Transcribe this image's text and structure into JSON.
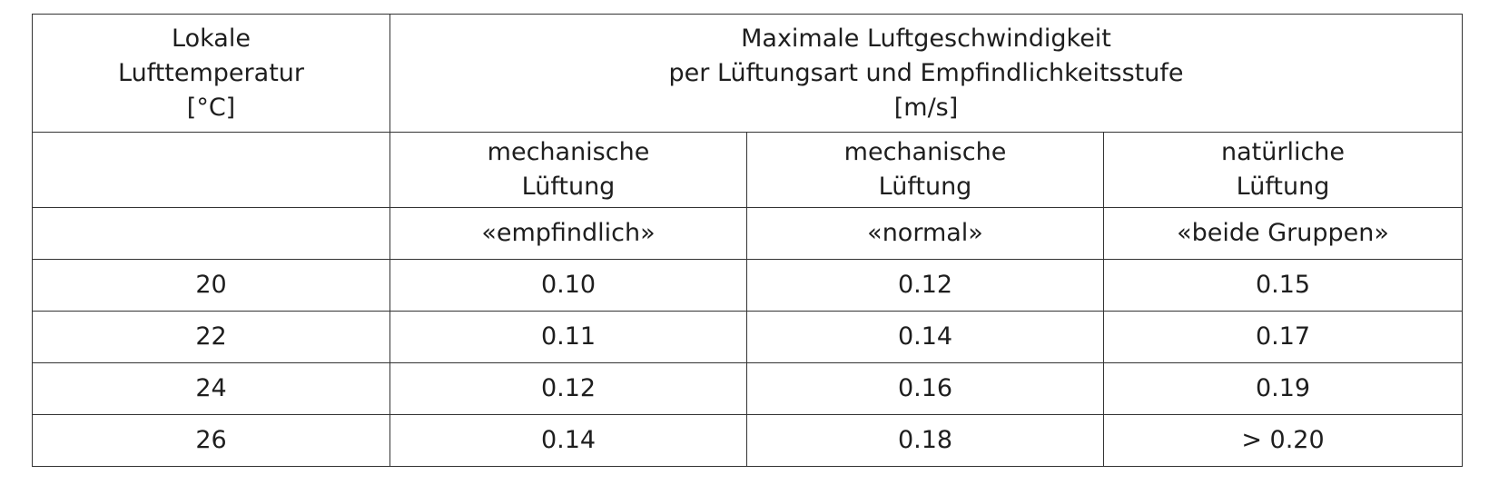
{
  "table": {
    "header": {
      "first": [
        "Lokale",
        "Lufttemperatur",
        "[°C]"
      ],
      "span": [
        "Maximale Luftgeschwindigkeit",
        "per Lüftungsart und Empfindlichkeitsstufe",
        "[m/s]"
      ]
    },
    "ventilation": [
      [
        "mechanische",
        "Lüftung"
      ],
      [
        "mechanische",
        "Lüftung"
      ],
      [
        "natürliche",
        "Lüftung"
      ]
    ],
    "sensitivity": [
      "«empfindlich»",
      "«normal»",
      "«beide Gruppen»"
    ],
    "rows": [
      [
        "20",
        "0.10",
        "0.12",
        "0.15"
      ],
      [
        "22",
        "0.11",
        "0.14",
        "0.17"
      ],
      [
        "24",
        "0.12",
        "0.16",
        "0.19"
      ],
      [
        "26",
        "0.14",
        "0.18",
        "> 0.20"
      ]
    ]
  }
}
